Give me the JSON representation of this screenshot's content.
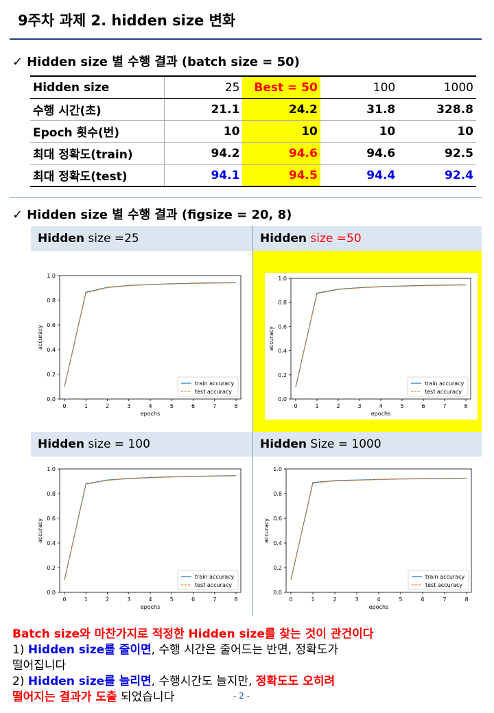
{
  "title": "9주차 과제 2. hidden size 변화",
  "section1": {
    "check": "✓",
    "heading": "Hidden size 별 수행 결과 (batch size = 50)"
  },
  "table": {
    "header": [
      "Hidden size",
      "25",
      "Best = 50",
      "100",
      "1000"
    ],
    "rows": [
      {
        "label": "수행 시간(초)",
        "values": [
          "21.1",
          "24.2",
          "31.8",
          "328.8"
        ]
      },
      {
        "label": "Epoch 횟수(번)",
        "values": [
          "10",
          "10",
          "10",
          "10"
        ]
      },
      {
        "label": "최대 정확도(train)",
        "values": [
          "94.2",
          "94.6",
          "94.6",
          "92.5"
        ]
      },
      {
        "label": "최대 정확도(test)",
        "values": [
          "94.1",
          "94.5",
          "94.4",
          "92.4"
        ]
      }
    ]
  },
  "section2": {
    "check": "✓",
    "heading": "Hidden size 별 수행 결과  (figsize = 20, 8)"
  },
  "panels": [
    {
      "label_bold": "Hidden",
      "label_rest": " size =25"
    },
    {
      "label_bold": "Hidden",
      "label_red": " size =50"
    },
    {
      "label_bold": "Hidden",
      "label_rest": " size = 100"
    },
    {
      "label_bold": "Hidden",
      "label_rest": " Size = 1000"
    }
  ],
  "chart_data": [
    {
      "type": "line",
      "xlabel": "epochs",
      "ylabel": "accuracy",
      "xlim": [
        0,
        8
      ],
      "ylim": [
        0.0,
        1.0
      ],
      "x": [
        0,
        1,
        2,
        3,
        4,
        5,
        6,
        7,
        8
      ],
      "legend_position": "lower-right",
      "grid": false,
      "series": [
        {
          "name": "train accuracy",
          "values": [
            0.1,
            0.865,
            0.905,
            0.92,
            0.928,
            0.934,
            0.938,
            0.941,
            0.942
          ],
          "color": "#1f77b4",
          "style": "solid"
        },
        {
          "name": "test accuracy",
          "values": [
            0.1,
            0.86,
            0.902,
            0.918,
            0.926,
            0.932,
            0.936,
            0.939,
            0.941
          ],
          "color": "#ff7f0e",
          "style": "dashed"
        }
      ]
    },
    {
      "type": "line",
      "xlabel": "epochs",
      "ylabel": "accuracy",
      "xlim": [
        0,
        8
      ],
      "ylim": [
        0.0,
        1.0
      ],
      "x": [
        0,
        1,
        2,
        3,
        4,
        5,
        6,
        7,
        8
      ],
      "legend_position": "lower-right",
      "grid": false,
      "series": [
        {
          "name": "train accuracy",
          "values": [
            0.1,
            0.878,
            0.91,
            0.923,
            0.931,
            0.937,
            0.941,
            0.944,
            0.946
          ],
          "color": "#1f77b4",
          "style": "solid"
        },
        {
          "name": "test accuracy",
          "values": [
            0.1,
            0.873,
            0.907,
            0.921,
            0.929,
            0.935,
            0.939,
            0.942,
            0.945
          ],
          "color": "#ff7f0e",
          "style": "dashed"
        }
      ]
    },
    {
      "type": "line",
      "xlabel": "epochs",
      "ylabel": "accuracy",
      "xlim": [
        0,
        8
      ],
      "ylim": [
        0.0,
        1.0
      ],
      "x": [
        0,
        1,
        2,
        3,
        4,
        5,
        6,
        7,
        8
      ],
      "legend_position": "lower-right",
      "grid": false,
      "series": [
        {
          "name": "train accuracy",
          "values": [
            0.1,
            0.88,
            0.91,
            0.923,
            0.93,
            0.936,
            0.94,
            0.943,
            0.946
          ],
          "color": "#1f77b4",
          "style": "solid"
        },
        {
          "name": "test accuracy",
          "values": [
            0.1,
            0.875,
            0.907,
            0.921,
            0.928,
            0.934,
            0.938,
            0.941,
            0.944
          ],
          "color": "#ff7f0e",
          "style": "dashed"
        }
      ]
    },
    {
      "type": "line",
      "xlabel": "epochs",
      "ylabel": "accuracy",
      "xlim": [
        0,
        8
      ],
      "ylim": [
        0.0,
        1.0
      ],
      "x": [
        0,
        1,
        2,
        3,
        4,
        5,
        6,
        7,
        8
      ],
      "legend_position": "lower-right",
      "grid": false,
      "series": [
        {
          "name": "train accuracy",
          "values": [
            0.1,
            0.89,
            0.905,
            0.91,
            0.915,
            0.919,
            0.921,
            0.923,
            0.925
          ],
          "color": "#1f77b4",
          "style": "solid"
        },
        {
          "name": "test accuracy",
          "values": [
            0.1,
            0.885,
            0.902,
            0.908,
            0.913,
            0.917,
            0.92,
            0.922,
            0.924
          ],
          "color": "#ff7f0e",
          "style": "dashed"
        }
      ]
    }
  ],
  "bottom": {
    "line1": "Batch size와 마찬가지로 적정한 Hidden size를 찾는 것이 관건이다",
    "line2_prefix": "1) ",
    "line2_blue": "Hidden size를 줄이면",
    "line2_rest": ", 수행 시간은 줄어드는 반면, 정확도가",
    "line3": "떨어집니다",
    "line4_prefix": "2) ",
    "line4_blue": "Hidden size를 늘리면",
    "line4_mid": ", 수행시간도 늘지만, ",
    "line4_red": "정확도도 오히려",
    "line5_red": "떨어지는 결과가 도출",
    "line5_rest": " 되었습니다"
  },
  "page_number": "- 2 -",
  "colors": {
    "highlight": "#ffff00",
    "red": "#ff0000",
    "blue": "#0000e6",
    "panel_header": "#dce6f1"
  }
}
